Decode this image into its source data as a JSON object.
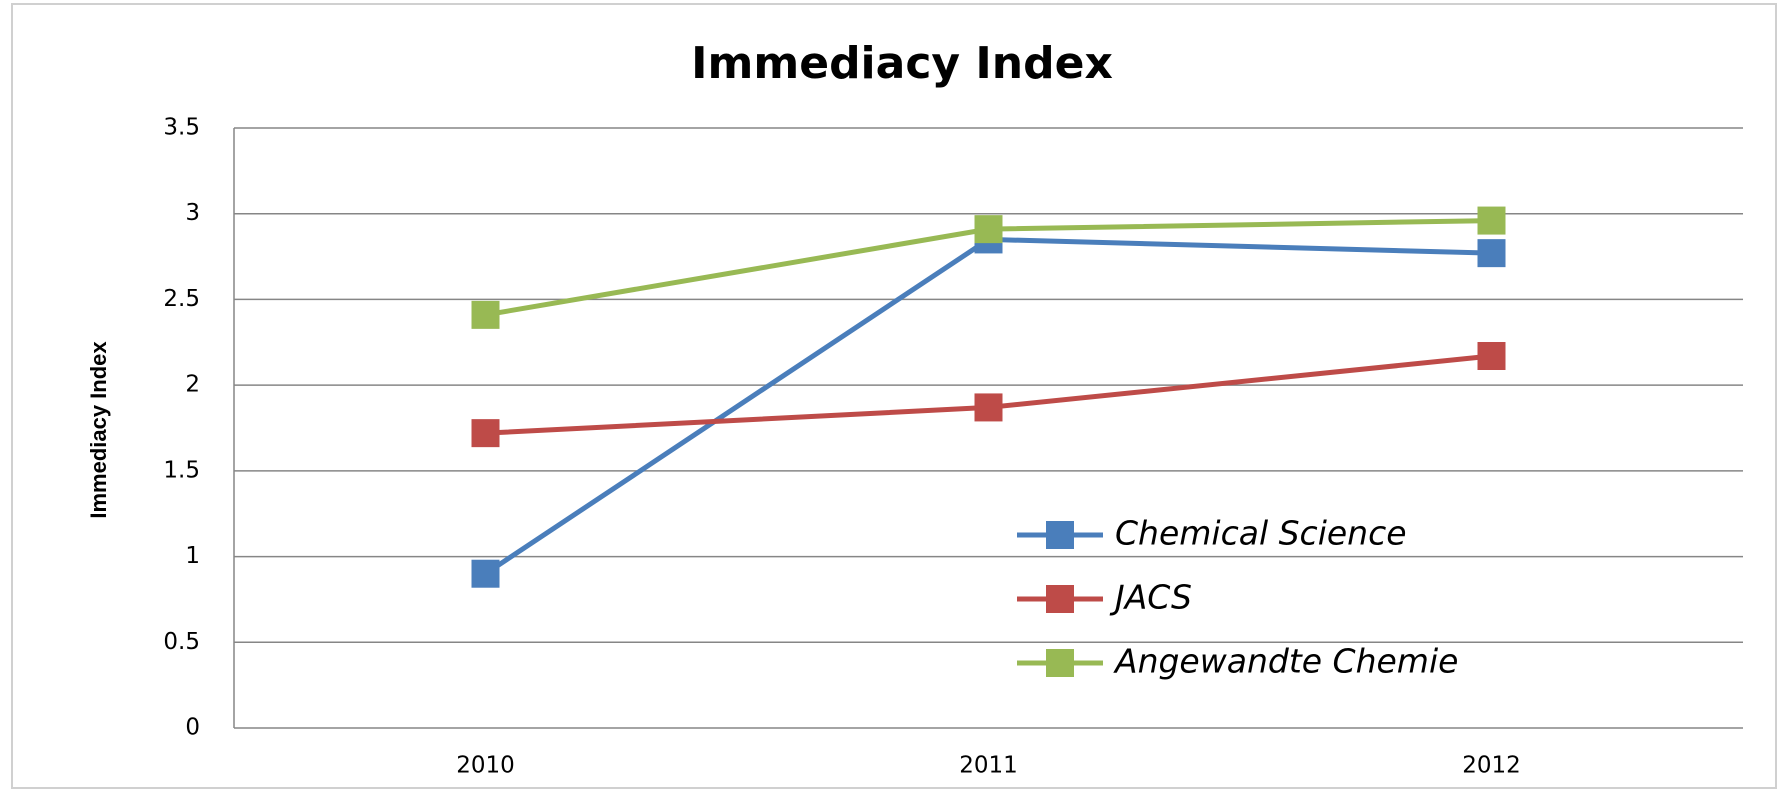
{
  "chart_data": {
    "type": "line",
    "title": "Immediacy Index",
    "y_label": "Immediacy Index",
    "categories": [
      "2010",
      "2011",
      "2012"
    ],
    "series": [
      {
        "name": "Chemical Science",
        "color": "#4a7ebb",
        "values": [
          0.9,
          2.85,
          2.77
        ]
      },
      {
        "name": "JACS",
        "color": "#be4b48",
        "values": [
          1.72,
          1.87,
          2.17
        ]
      },
      {
        "name": "Angewandte Chemie",
        "color": "#98b954",
        "values": [
          2.41,
          2.91,
          2.96
        ]
      }
    ],
    "ylim": [
      0,
      3.5
    ],
    "yticks": [
      0,
      0.5,
      1,
      1.5,
      2,
      2.5,
      3,
      3.5
    ],
    "grid": true,
    "legend": "lower right"
  }
}
